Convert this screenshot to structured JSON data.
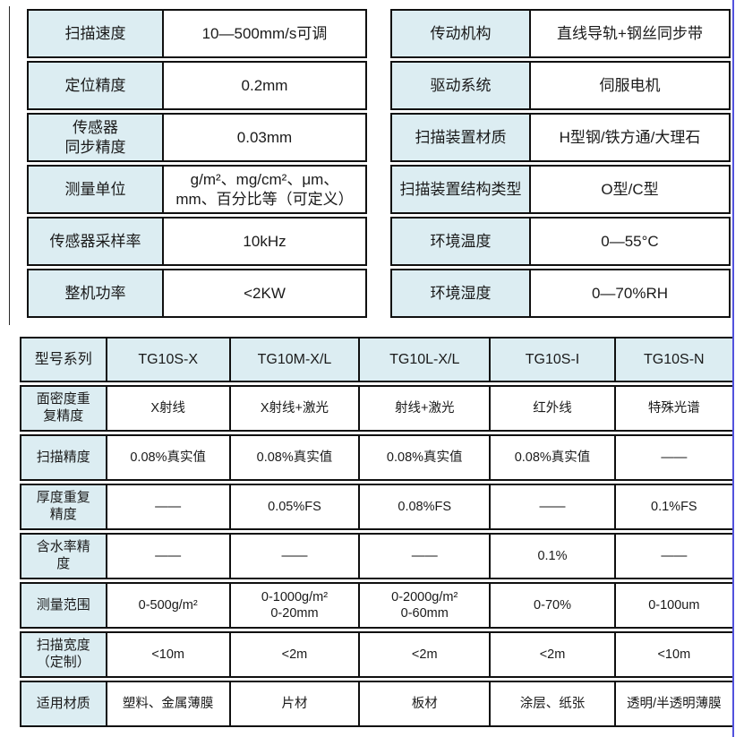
{
  "colors": {
    "header_fill": "#dcedf2",
    "border": "#101010",
    "accent_line": "#5353de",
    "text": "#1a1a1a"
  },
  "spec_table_left": {
    "rows": [
      {
        "label": "扫描速度",
        "value": "10—500mm/s可调"
      },
      {
        "label": "定位精度",
        "value": "0.2mm"
      },
      {
        "label": "传感器\n同步精度",
        "value": "0.03mm"
      },
      {
        "label": "测量单位",
        "value": "g/m²、mg/cm²、μm、\nmm、百分比等（可定义）"
      },
      {
        "label": "传感器采样率",
        "value": "10kHz"
      },
      {
        "label": "整机功率",
        "value": "<2KW"
      }
    ]
  },
  "spec_table_right": {
    "rows": [
      {
        "label": "传动机构",
        "value": "直线导轨+钢丝同步带"
      },
      {
        "label": "驱动系统",
        "value": "伺服电机"
      },
      {
        "label": "扫描装置材质",
        "value": "H型钢/铁方通/大理石"
      },
      {
        "label": "扫描装置结构类型",
        "value": "O型/C型"
      },
      {
        "label": "环境温度",
        "value": "0—55°C"
      },
      {
        "label": "环境湿度",
        "value": "0—70%RH"
      }
    ]
  },
  "model_table": {
    "header": [
      "型号系列",
      "TG10S-X",
      "TG10M-X/L",
      "TG10L-X/L",
      "TG10S-I",
      "TG10S-N"
    ],
    "rows": [
      {
        "label": "面密度重\n复精度",
        "values": [
          "X射线",
          "X射线+激光",
          "射线+激光",
          "红外线",
          "特殊光谱"
        ]
      },
      {
        "label": "扫描精度",
        "values": [
          "0.08%真实值",
          "0.08%真实值",
          "0.08%真实值",
          "0.08%真实值",
          "——"
        ]
      },
      {
        "label": "厚度重复\n精度",
        "values": [
          "——",
          "0.05%FS",
          "0.08%FS",
          "——",
          "0.1%FS"
        ]
      },
      {
        "label": "含水率精\n度",
        "values": [
          "——",
          "——",
          "——",
          "0.1%",
          "——"
        ]
      },
      {
        "label": "测量范围",
        "values": [
          "0-500g/m²",
          "0-1000g/m²\n0-20mm",
          "0-2000g/m²\n0-60mm",
          "0-70%",
          "0-100um"
        ]
      },
      {
        "label": "扫描宽度\n（定制）",
        "values": [
          "<10m",
          "<2m",
          "<2m",
          "<2m",
          "<10m"
        ]
      },
      {
        "label": "适用材质",
        "values": [
          "塑料、金属薄膜",
          "片材",
          "板材",
          "涂层、纸张",
          "透明/半透明薄膜"
        ]
      }
    ]
  }
}
